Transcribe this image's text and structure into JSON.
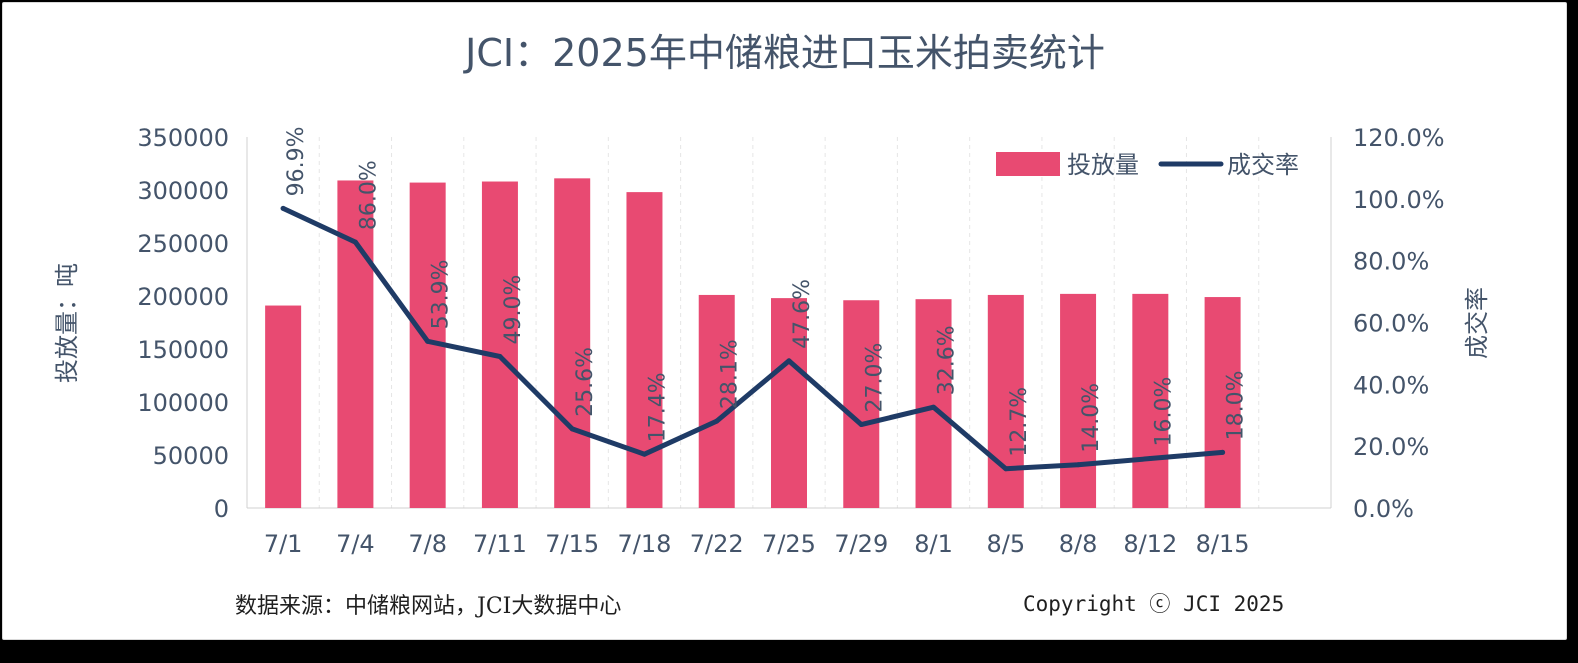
{
  "chart_data": {
    "type": "bar",
    "title": "JCI：2025年中储粮进口玉米拍卖统计",
    "categories": [
      "7/1",
      "7/4",
      "7/8",
      "7/11",
      "7/15",
      "7/18",
      "7/22",
      "7/25",
      "7/29",
      "8/1",
      "8/5",
      "8/8",
      "8/12",
      "8/15"
    ],
    "series": [
      {
        "name": "投放量",
        "type": "bar",
        "axis": "left",
        "color": "#e84a72",
        "values": [
          191000,
          309000,
          307000,
          308000,
          311000,
          298000,
          201000,
          198000,
          196000,
          197000,
          201000,
          202000,
          202000,
          199000
        ]
      },
      {
        "name": "成交率",
        "type": "line",
        "axis": "right",
        "color": "#1f3b66",
        "values": [
          96.9,
          86.0,
          53.9,
          49.0,
          25.6,
          17.4,
          28.1,
          47.6,
          27.0,
          32.6,
          12.7,
          14.0,
          16.0,
          18.0
        ],
        "labels": [
          "96.9%",
          "86.0%",
          "53.9%",
          "49.0%",
          "25.6%",
          "17.4%",
          "28.1%",
          "47.6%",
          "27.0%",
          "32.6%",
          "12.7%",
          "14.0%",
          "16.0%",
          "18.0%"
        ]
      }
    ],
    "ylabel": "投放量：吨",
    "y2label": "成交率",
    "ylim": [
      0,
      350000
    ],
    "y2lim": [
      0,
      120
    ],
    "yticks": [
      "0",
      "50000",
      "100000",
      "150000",
      "200000",
      "250000",
      "300000",
      "350000"
    ],
    "y2ticks": [
      "0.0%",
      "20.0%",
      "40.0%",
      "60.0%",
      "80.0%",
      "100.0%",
      "120.0%"
    ],
    "grid": "vertical-dashed",
    "legend": "top-right"
  },
  "footer": {
    "source": "数据来源：中储粮网站，JCI大数据中心",
    "copyright": "Copyright ⓒ JCI 2025"
  }
}
